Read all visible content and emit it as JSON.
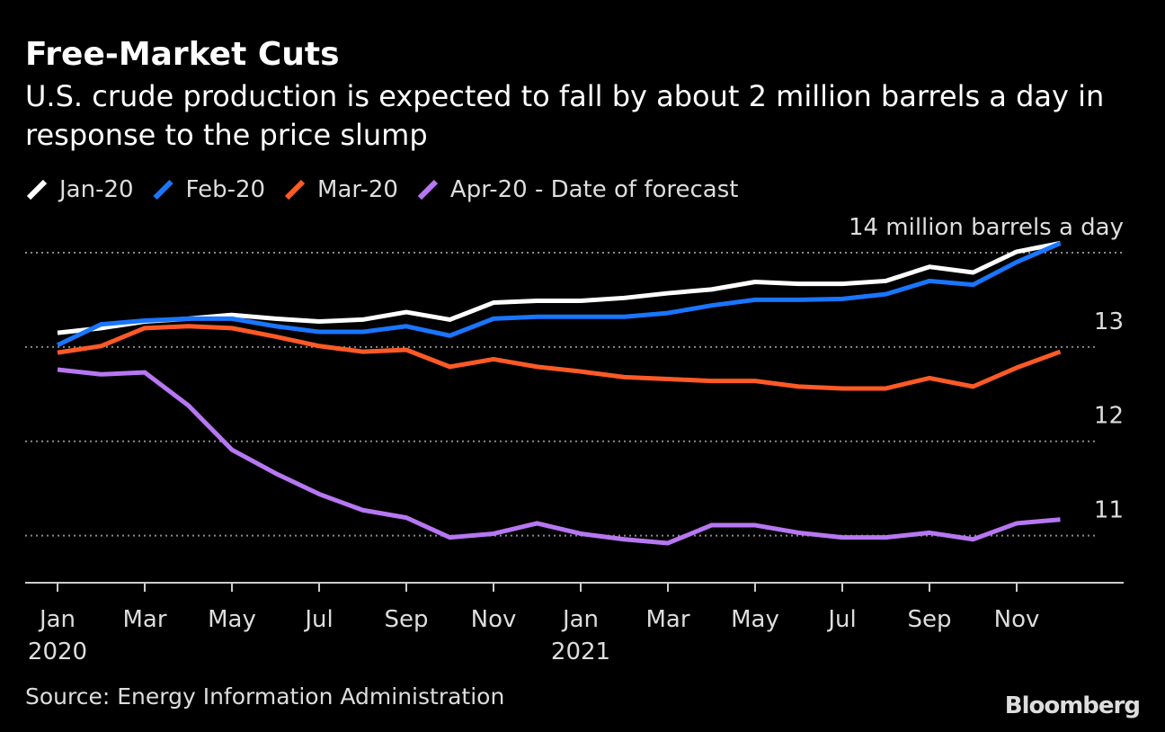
{
  "chart_data": {
    "type": "line",
    "title": "Free-Market Cuts",
    "subtitle": "U.S. crude production is expected to fall by about 2 million barrels a day in response to the price slump",
    "source": "Source: Energy Information Administration",
    "brand": "Bloomberg",
    "categories": [
      "Jan",
      null,
      "Mar",
      null,
      "May",
      null,
      "Jul",
      null,
      "Sep",
      null,
      "Nov",
      null,
      "Jan",
      null,
      "Mar",
      null,
      "May",
      null,
      "Jul",
      null,
      "Sep",
      null,
      "Nov",
      null
    ],
    "category_years": [
      "2020",
      null,
      null,
      null,
      null,
      null,
      null,
      null,
      null,
      null,
      null,
      null,
      "2021",
      null,
      null,
      null,
      null,
      null,
      null,
      null,
      null,
      null,
      null,
      null
    ],
    "series": [
      {
        "name": "Jan-20",
        "color": "#ffffff",
        "values": [
          13.15,
          13.2,
          13.27,
          13.3,
          13.34,
          13.3,
          13.27,
          13.29,
          13.37,
          13.29,
          13.47,
          13.49,
          13.49,
          13.52,
          13.57,
          13.61,
          13.69,
          13.67,
          13.67,
          13.7,
          13.85,
          13.79,
          14.01,
          14.1
        ]
      },
      {
        "name": "Feb-20",
        "color": "#1a75ff",
        "values": [
          13.02,
          13.24,
          13.28,
          13.3,
          13.3,
          13.22,
          13.16,
          13.16,
          13.22,
          13.12,
          13.3,
          13.32,
          13.32,
          13.32,
          13.36,
          13.44,
          13.5,
          13.5,
          13.51,
          13.56,
          13.7,
          13.66,
          13.9,
          14.1
        ]
      },
      {
        "name": "Mar-20",
        "color": "#ff5a26",
        "values": [
          12.94,
          13.01,
          13.2,
          13.22,
          13.2,
          13.11,
          13.01,
          12.95,
          12.97,
          12.79,
          12.87,
          12.79,
          12.74,
          12.68,
          12.66,
          12.64,
          12.64,
          12.58,
          12.56,
          12.56,
          12.67,
          12.58,
          12.78,
          12.95
        ]
      },
      {
        "name": "Apr-20 - Date of forecast",
        "color": "#b777f2",
        "values": [
          12.76,
          12.71,
          12.73,
          12.38,
          11.91,
          11.66,
          11.44,
          11.27,
          11.19,
          10.98,
          11.02,
          11.13,
          11.02,
          10.96,
          10.92,
          11.11,
          11.11,
          11.03,
          10.98,
          10.98,
          11.03,
          10.96,
          11.13,
          11.17
        ]
      }
    ],
    "ylim": [
      10.5,
      14.2
    ],
    "yticks": [
      11,
      12,
      13,
      {
        "value": 14,
        "label": "14 million barrels a day"
      }
    ],
    "grid": true
  }
}
